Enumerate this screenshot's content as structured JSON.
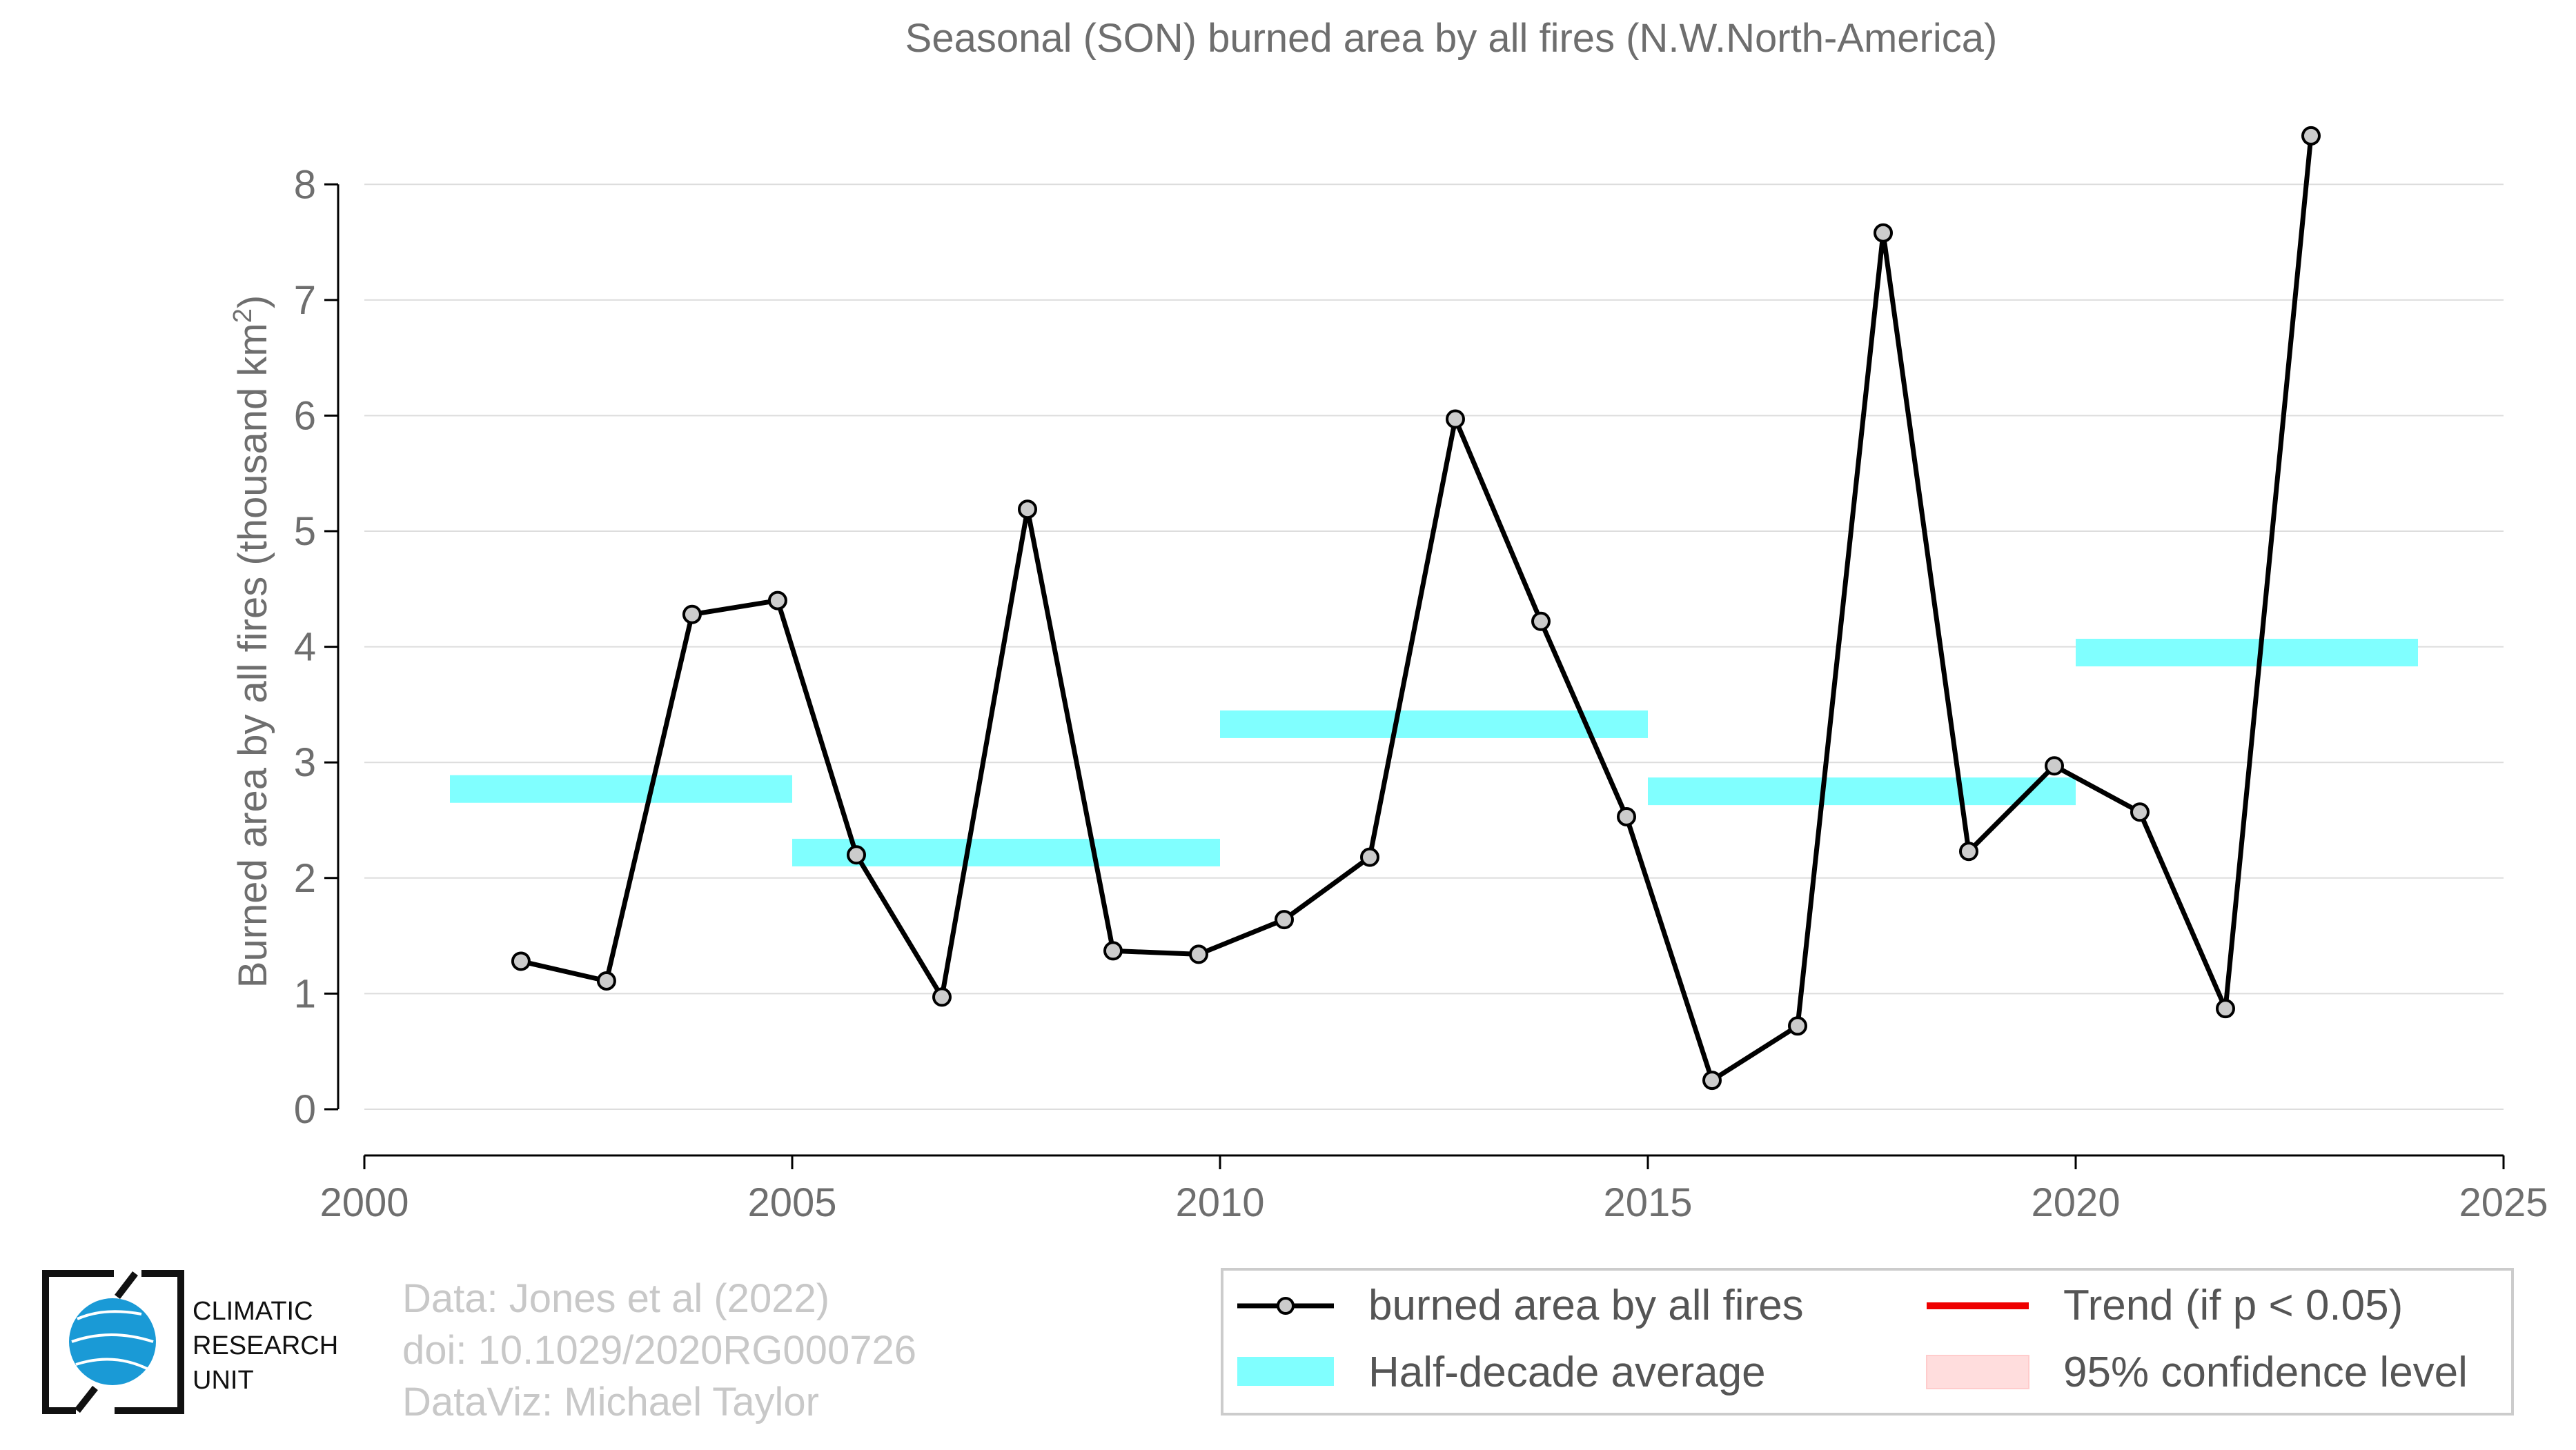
{
  "chart_data": {
    "type": "line",
    "title": "Seasonal (SON) burned area by all fires (N.W.North-America)",
    "ylabel_main": "Burned area by all fires (thousand km",
    "ylabel_sup": "2",
    "ylabel_end": ")",
    "xlim": [
      2000,
      2025
    ],
    "ylim": [
      -0.4,
      8.7
    ],
    "xticks": [
      2000,
      2005,
      2010,
      2015,
      2020,
      2025
    ],
    "yticks": [
      0,
      1,
      2,
      3,
      4,
      5,
      6,
      7,
      8
    ],
    "series": [
      {
        "name": "burned area by all fires",
        "x": [
          2001.83,
          2002.83,
          2003.83,
          2004.83,
          2005.75,
          2006.75,
          2007.75,
          2008.75,
          2009.75,
          2010.75,
          2011.75,
          2012.75,
          2013.75,
          2014.75,
          2015.75,
          2016.75,
          2017.75,
          2018.75,
          2019.75,
          2020.75,
          2021.75,
          2022.75
        ],
        "values": [
          1.28,
          1.11,
          4.28,
          4.4,
          2.2,
          0.97,
          5.19,
          1.37,
          1.34,
          1.64,
          2.18,
          5.97,
          4.22,
          2.53,
          0.25,
          0.72,
          7.58,
          2.23,
          2.97,
          2.57,
          0.87,
          8.42
        ]
      }
    ],
    "half_decade_average": [
      {
        "start": 2001,
        "end": 2005,
        "value": 2.77
      },
      {
        "start": 2005,
        "end": 2010,
        "value": 2.22
      },
      {
        "start": 2010,
        "end": 2015,
        "value": 3.33
      },
      {
        "start": 2015,
        "end": 2020,
        "value": 2.75
      },
      {
        "start": 2020,
        "end": 2024,
        "value": 3.95
      }
    ],
    "legend": {
      "placement": "bottom-right",
      "entries": [
        "burned area by all fires",
        "Trend (if p < 0.05)",
        "Half-decade average",
        "95% confidence level"
      ]
    },
    "colors": {
      "line": "#000000",
      "marker_fill": "#cccccc",
      "half_decade": "#80ffff",
      "trend": "#ee0000",
      "confidence": "#ffdddd",
      "grid": "#dddddd"
    }
  },
  "credits": {
    "line1": "Data: Jones et al (2022)",
    "line2": "doi: 10.1029/2020RG000726",
    "line3": "DataViz: Michael Taylor"
  },
  "logo": {
    "line1": "CLIMATIC",
    "line2": "RESEARCH",
    "line3": "UNIT"
  }
}
